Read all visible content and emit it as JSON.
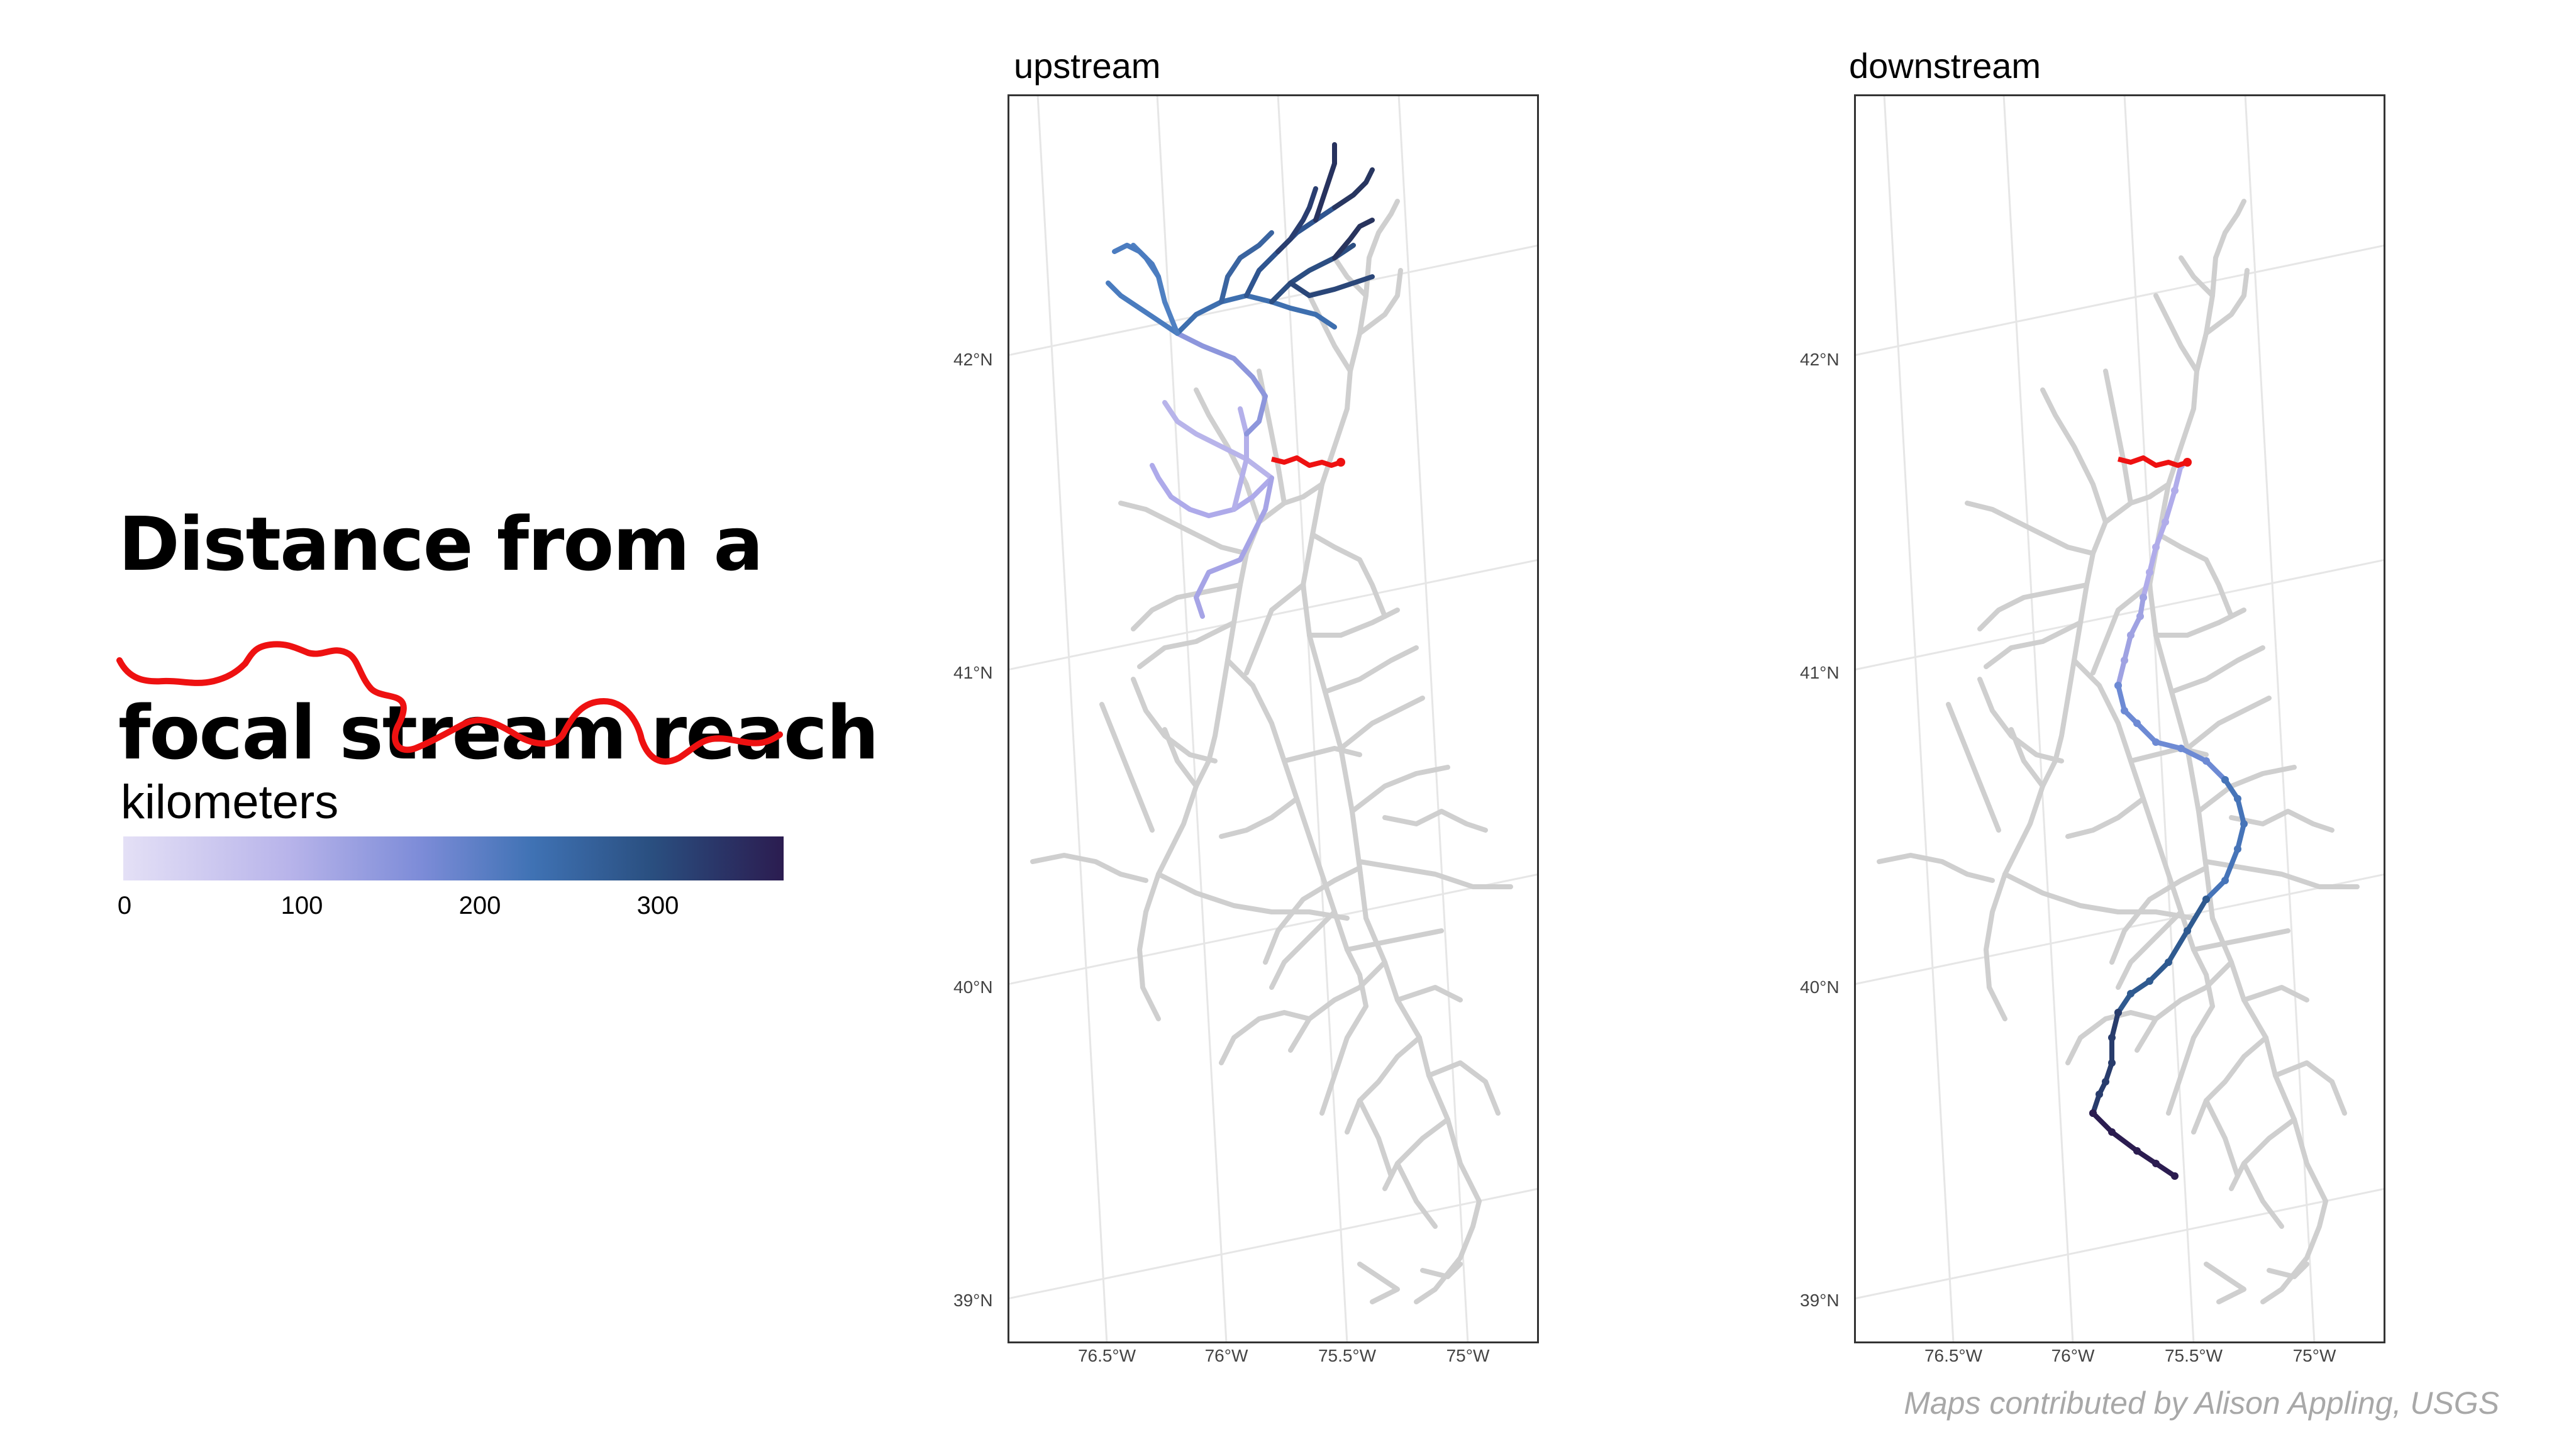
{
  "title": {
    "line1": "Distance from a",
    "line2": "focal stream reach"
  },
  "legend": {
    "title": "kilometers",
    "ticks": [
      "0",
      "100",
      "200",
      "300"
    ],
    "gradient_colors": [
      "#e4e0f6",
      "#b8b4ea",
      "#7d8cd8",
      "#3f72b4",
      "#2a4f80",
      "#2b1c50"
    ],
    "tick_values": [
      0,
      100,
      200,
      300
    ],
    "max_value": 372
  },
  "panels": [
    {
      "title": "upstream"
    },
    {
      "title": "downstream"
    }
  ],
  "axes": {
    "lat_labels": [
      "42°N",
      "41°N",
      "40°N",
      "39°N"
    ],
    "lon_labels": [
      "76.5°W",
      "76°W",
      "75.5°W",
      "75°W"
    ]
  },
  "colors": {
    "focal_reach": "#ee1111",
    "network": "#cfcfcf",
    "grid": "#e6e6e6",
    "border": "#333333"
  },
  "credit": "Maps contributed by Alison Appling, USGS"
}
